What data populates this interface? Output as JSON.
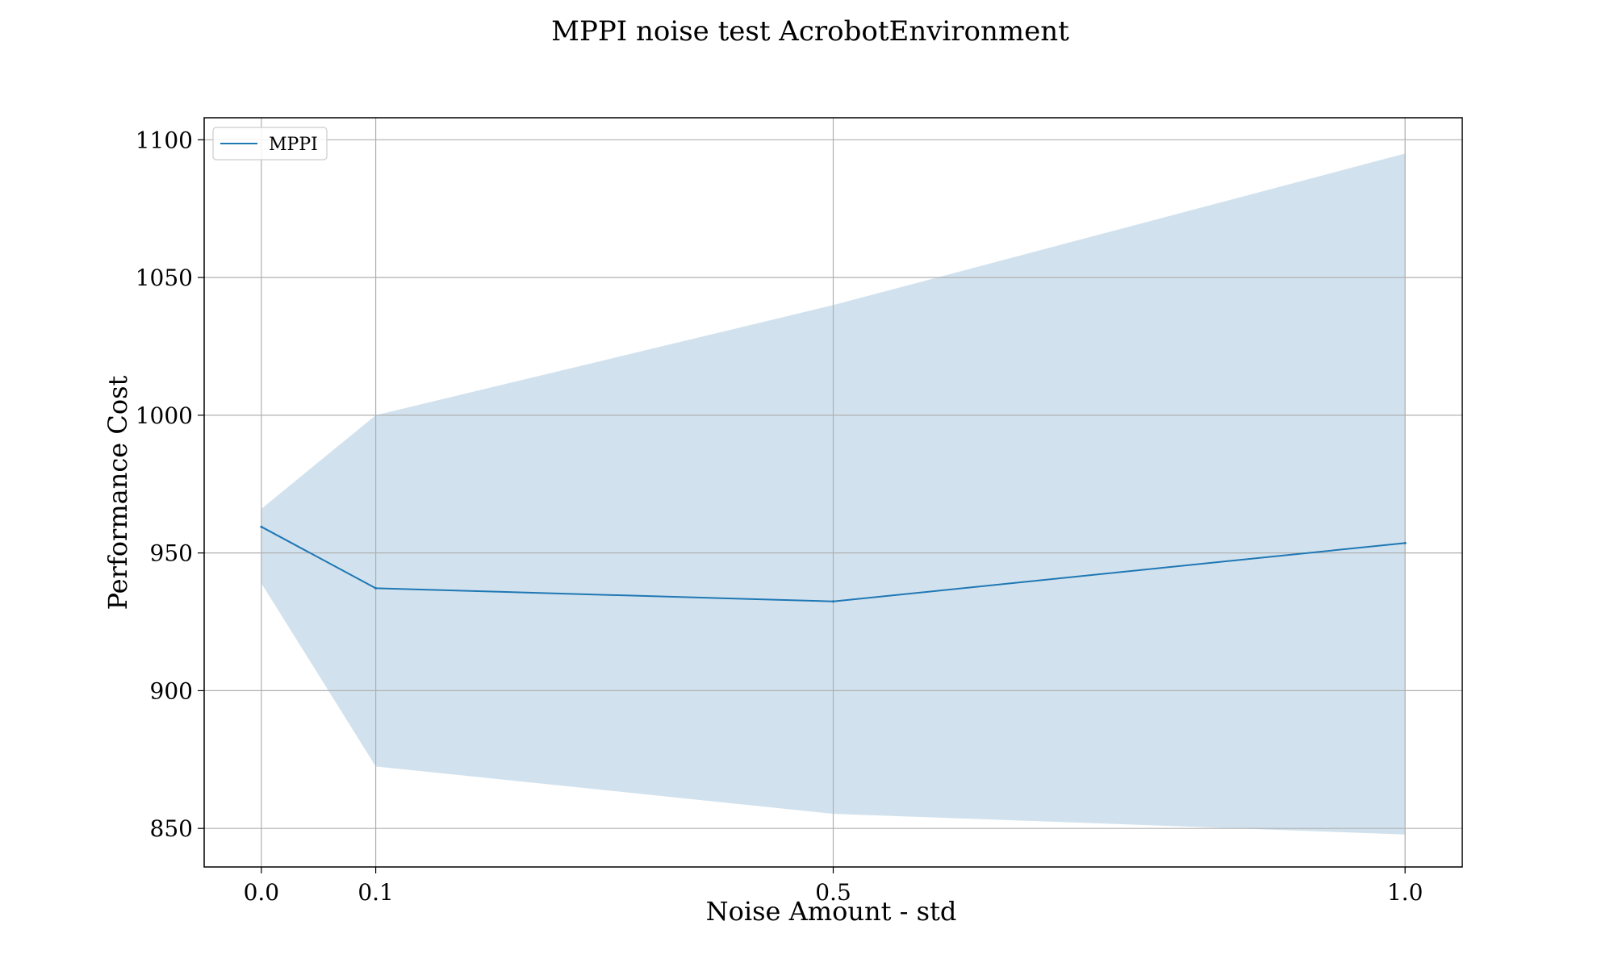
{
  "chart_data": {
    "type": "line",
    "title": "MPPI noise test AcrobotEnvironment",
    "xlabel": "Noise Amount - std",
    "ylabel": "Performance Cost",
    "x": [
      0.0,
      0.1,
      0.5,
      1.0
    ],
    "x_tick_labels": [
      "0.0",
      "0.1",
      "0.5",
      "1.0"
    ],
    "xlim": [
      -0.05,
      1.05
    ],
    "ylim": [
      836,
      1108
    ],
    "y_ticks": [
      850,
      900,
      950,
      1000,
      1050,
      1100
    ],
    "y_tick_labels": [
      "850",
      "900",
      "950",
      "1000",
      "1050",
      "1100"
    ],
    "grid": true,
    "legend_position": "top-left",
    "series": [
      {
        "name": "MPPI",
        "values": [
          959.5,
          937.2,
          932.4,
          953.6
        ],
        "band_upper": [
          966,
          1000,
          1040,
          1095
        ],
        "band_lower": [
          939,
          872.5,
          855.3,
          847.8
        ],
        "color": "#1f77b4",
        "band_color": "#d1e2ee"
      }
    ]
  }
}
